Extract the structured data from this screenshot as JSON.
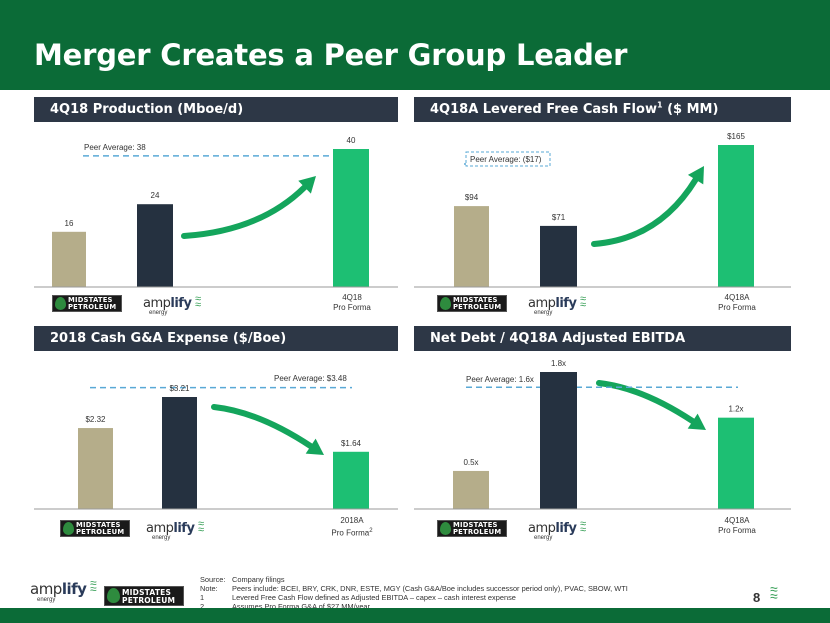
{
  "page": {
    "title": "Merger Creates a Peer Group Leader",
    "page_number": "8"
  },
  "logos": {
    "midstates_line1": "MIDSTATES",
    "midstates_line2": "PETROLEUM",
    "amplify_light": "amp",
    "amplify_bold": "lify",
    "amplify_sub": "energy"
  },
  "footnotes": [
    {
      "key": "Source:",
      "text": "Company filings"
    },
    {
      "key": "Note:",
      "text": "Peers include: BCEI, BRY, CRK, DNR, ESTE, MGY (Cash G&A/Boe includes successor period only), PVAC, SBOW, WTI"
    },
    {
      "key": "1",
      "text": "Levered Free Cash Flow defined as Adjusted EBITDA – capex – cash interest expense"
    },
    {
      "key": "2",
      "text": "Assumes Pro Forma G&A of $27 MM/year"
    }
  ],
  "colors": {
    "header_green": "#0b6b37",
    "panel_header": "#2d3746",
    "midstates_bar": "#b5ad8a",
    "amplify_bar": "#253140",
    "proforma_bar": "#1dbf73",
    "arrow_green": "#14a55c",
    "peer_line": "#5aa9d6"
  },
  "chart_data": [
    {
      "type": "bar",
      "title": "4Q18 Production (Mboe/d)",
      "categories": [
        "MIDSTATES PETROLEUM",
        "amplify energy",
        "4Q18 Pro Forma"
      ],
      "category_labels": [
        "",
        "",
        "4Q18\nPro Forma"
      ],
      "values": [
        16,
        24,
        40
      ],
      "value_labels": [
        "16",
        "24",
        "40"
      ],
      "ylim": [
        0,
        40
      ],
      "peer_average": 38,
      "peer_label": "Peer Average: 38",
      "peer_label_boxed": false,
      "arrow": "up"
    },
    {
      "type": "bar",
      "title": "4Q18A Levered Free Cash Flow",
      "title_sup": "1",
      "title_suffix": " ($ MM)",
      "categories": [
        "MIDSTATES PETROLEUM",
        "amplify energy",
        "4Q18A Pro Forma"
      ],
      "category_labels": [
        "",
        "",
        "4Q18A\nPro Forma"
      ],
      "values": [
        94,
        71,
        165
      ],
      "value_labels": [
        "$94",
        "$71",
        "$165"
      ],
      "ylim": [
        0,
        165
      ],
      "peer_average": -17,
      "peer_label": "Peer Average: ($17)",
      "peer_label_boxed": true,
      "arrow": "up"
    },
    {
      "type": "bar",
      "title": "2018 Cash G&A Expense ($/Boe)",
      "categories": [
        "MIDSTATES PETROLEUM",
        "amplify energy",
        "2018A Pro Forma"
      ],
      "category_labels": [
        "",
        "",
        "2018A\nPro Forma"
      ],
      "category_sup": "2",
      "values": [
        2.32,
        3.21,
        1.64
      ],
      "value_labels": [
        "$2.32",
        "$3.21",
        "$1.64"
      ],
      "ylim": [
        0,
        3.21
      ],
      "peer_average": 3.48,
      "peer_label": "Peer Average: $3.48",
      "peer_label_boxed": false,
      "arrow": "down"
    },
    {
      "type": "bar",
      "title": "Net Debt / 4Q18A Adjusted EBITDA",
      "categories": [
        "MIDSTATES PETROLEUM",
        "amplify energy",
        "4Q18A Pro Forma"
      ],
      "category_labels": [
        "",
        "",
        "4Q18A\nPro Forma"
      ],
      "values": [
        0.5,
        1.8,
        1.2
      ],
      "value_labels": [
        "0.5x",
        "1.8x",
        "1.2x"
      ],
      "ylim": [
        0,
        1.8
      ],
      "peer_average": 1.6,
      "peer_label": "Peer Average: 1.6x",
      "peer_label_boxed": false,
      "arrow": "down"
    }
  ]
}
